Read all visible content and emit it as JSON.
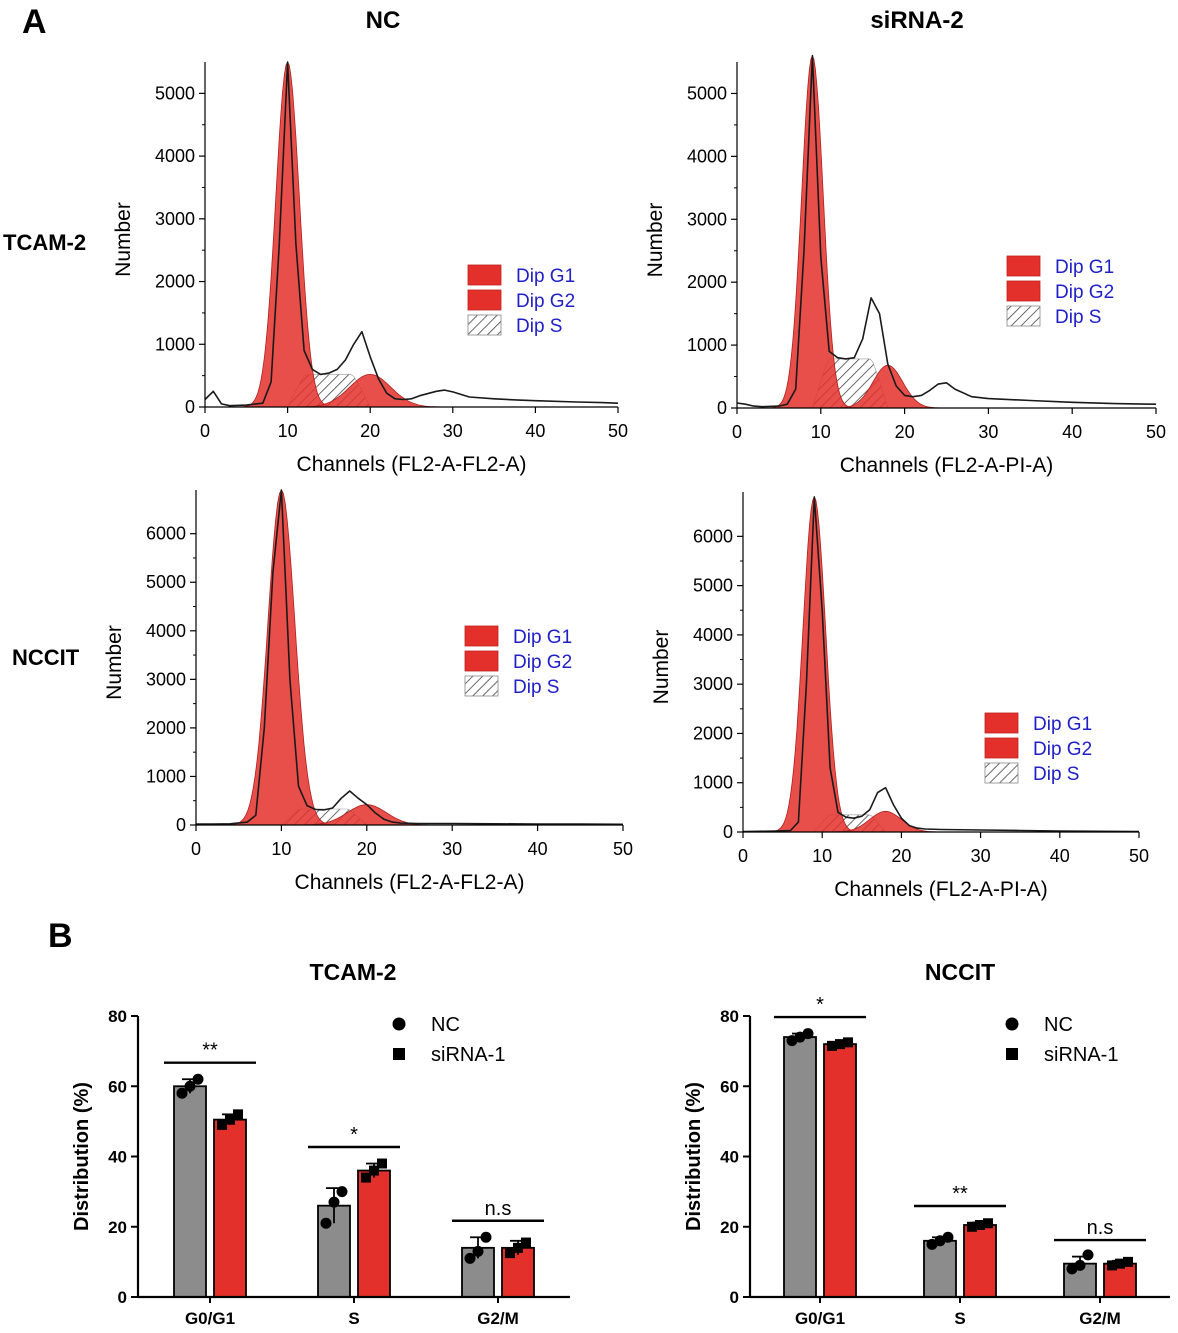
{
  "panels": {
    "a_label": "A",
    "b_label": "B",
    "col_titles": [
      "NC",
      "siRNA-2"
    ],
    "row_labels": [
      "TCAM-2",
      "NCCIT"
    ]
  },
  "colors": {
    "g1_fill": "#e4302a",
    "g2_fill": "#e4302a",
    "nc_bar": "#8c8c8c",
    "sirna_bar": "#e4302a",
    "legend_text": "#2020c8"
  },
  "chart_data": [
    {
      "id": "hist-tcam2-nc",
      "type": "area",
      "row": "TCAM-2",
      "column": "NC",
      "xlabel": "Channels (FL2-A-FL2-A)",
      "ylabel": "Number",
      "xlim": [
        0,
        50
      ],
      "ylim": [
        0,
        5500
      ],
      "xticks": [
        0,
        10,
        20,
        30,
        40,
        50
      ],
      "yticks": [
        0,
        1000,
        2000,
        3000,
        4000,
        5000
      ],
      "legend": [
        "Dip G1",
        "Dip G2",
        "Dip S"
      ],
      "legend_position": "middle-right",
      "g1_peak": {
        "x": 10,
        "height": 5500,
        "halfwidth": 2
      },
      "g2_peak": {
        "x": 20,
        "height": 520,
        "halfwidth": 3.5
      },
      "s_region": {
        "x0": 10,
        "x1": 20,
        "height": 520
      },
      "total_curve": {
        "x": [
          0,
          1,
          2,
          3,
          5,
          7,
          8,
          9,
          10,
          11,
          12,
          13,
          14,
          15,
          16,
          17,
          18,
          19,
          20,
          21,
          22,
          23,
          24,
          25,
          26,
          28,
          29,
          30,
          32,
          35,
          38,
          40,
          45,
          48,
          50
        ],
        "y": [
          120,
          250,
          50,
          20,
          30,
          60,
          400,
          2600,
          5500,
          2600,
          900,
          600,
          520,
          540,
          600,
          750,
          1000,
          1200,
          800,
          450,
          220,
          130,
          120,
          130,
          180,
          250,
          270,
          240,
          160,
          130,
          110,
          100,
          80,
          70,
          60
        ]
      }
    },
    {
      "id": "hist-tcam2-sirna2",
      "type": "area",
      "row": "TCAM-2",
      "column": "siRNA-2",
      "xlabel": "Channels (FL2-A-PI-A)",
      "ylabel": "Number",
      "xlim": [
        0,
        50
      ],
      "ylim": [
        0,
        5500
      ],
      "xticks": [
        0,
        10,
        20,
        30,
        40,
        50
      ],
      "yticks": [
        0,
        1000,
        2000,
        3000,
        4000,
        5000
      ],
      "legend": [
        "Dip G1",
        "Dip G2",
        "Dip S"
      ],
      "legend_position": "middle-right",
      "g1_peak": {
        "x": 9,
        "height": 5600,
        "halfwidth": 1.8
      },
      "g2_peak": {
        "x": 18,
        "height": 680,
        "halfwidth": 2.5
      },
      "s_region": {
        "x0": 9,
        "x1": 18,
        "height": 780
      },
      "total_curve": {
        "x": [
          0,
          1,
          2,
          3,
          5,
          6,
          7,
          8,
          9,
          10,
          11,
          12,
          13,
          14,
          15,
          16,
          17,
          18,
          19,
          20,
          21,
          22,
          23,
          24,
          25,
          26,
          28,
          30,
          35,
          40,
          45,
          50
        ],
        "y": [
          80,
          60,
          30,
          20,
          30,
          60,
          300,
          2500,
          5600,
          2400,
          900,
          800,
          780,
          800,
          1100,
          1750,
          1500,
          700,
          350,
          200,
          180,
          200,
          280,
          380,
          400,
          300,
          180,
          150,
          120,
          90,
          70,
          60
        ]
      }
    },
    {
      "id": "hist-nccit-nc",
      "type": "area",
      "row": "NCCIT",
      "column": "NC",
      "xlabel": "Channels (FL2-A-FL2-A)",
      "ylabel": "Number",
      "xlim": [
        0,
        50
      ],
      "ylim": [
        0,
        6900
      ],
      "xticks": [
        0,
        10,
        20,
        30,
        40,
        50
      ],
      "yticks": [
        0,
        1000,
        2000,
        3000,
        4000,
        5000,
        6000
      ],
      "legend": [
        "Dip G1",
        "Dip G2",
        "Dip S"
      ],
      "legend_position": "middle-right",
      "g1_peak": {
        "x": 10,
        "height": 6900,
        "halfwidth": 2.2
      },
      "g2_peak": {
        "x": 20,
        "height": 420,
        "halfwidth": 3.2
      },
      "s_region": {
        "x0": 10,
        "x1": 20,
        "height": 330
      },
      "total_curve": {
        "x": [
          0,
          2,
          4,
          6,
          7,
          8,
          9,
          10,
          11,
          12,
          13,
          14,
          15,
          16,
          17,
          18,
          19,
          20,
          21,
          22,
          23,
          24,
          26,
          30,
          35,
          40,
          45,
          50
        ],
        "y": [
          20,
          20,
          25,
          60,
          200,
          2000,
          5200,
          6900,
          3000,
          800,
          400,
          320,
          310,
          350,
          550,
          700,
          550,
          420,
          250,
          120,
          60,
          40,
          30,
          30,
          25,
          20,
          20,
          15
        ]
      }
    },
    {
      "id": "hist-nccit-sirna2",
      "type": "area",
      "row": "NCCIT",
      "column": "siRNA-2",
      "xlabel": "Channels (FL2-A-PI-A)",
      "ylabel": "Number",
      "xlim": [
        0,
        50
      ],
      "ylim": [
        0,
        6900
      ],
      "xticks": [
        0,
        10,
        20,
        30,
        40,
        50
      ],
      "yticks": [
        0,
        1000,
        2000,
        3000,
        4000,
        5000,
        6000
      ],
      "legend": [
        "Dip G1",
        "Dip G2",
        "Dip S"
      ],
      "legend_position": "bottom-right",
      "g1_peak": {
        "x": 9,
        "height": 6800,
        "halfwidth": 2
      },
      "g2_peak": {
        "x": 18,
        "height": 420,
        "halfwidth": 2.8
      },
      "s_region": {
        "x0": 9,
        "x1": 18,
        "height": 350
      },
      "total_curve": {
        "x": [
          0,
          2,
          4,
          6,
          7,
          8,
          9,
          10,
          11,
          12,
          13,
          14,
          15,
          16,
          17,
          18,
          19,
          20,
          21,
          22,
          23,
          25,
          30,
          35,
          40,
          45,
          50
        ],
        "y": [
          10,
          15,
          20,
          30,
          200,
          3000,
          6800,
          4500,
          1300,
          400,
          300,
          280,
          320,
          450,
          800,
          900,
          550,
          280,
          130,
          80,
          60,
          50,
          40,
          30,
          20,
          15,
          10
        ]
      }
    },
    {
      "id": "bar-tcam2",
      "type": "bar",
      "title": "TCAM-2",
      "ylabel": "Distribution (%)",
      "ylim": [
        0,
        80
      ],
      "yticks": [
        0,
        20,
        40,
        60,
        80
      ],
      "categories": [
        "G0/G1",
        "S",
        "G2/M"
      ],
      "legend_position": "top-right",
      "series": [
        {
          "name": "NC",
          "values": [
            60,
            26,
            14
          ],
          "errors": [
            2,
            5,
            3
          ],
          "points": [
            [
              58,
              60,
              62
            ],
            [
              21,
              27,
              30
            ],
            [
              11,
              13,
              17
            ]
          ]
        },
        {
          "name": "siRNA-1",
          "values": [
            50.5,
            36,
            14
          ],
          "errors": [
            1.5,
            2,
            2
          ],
          "points": [
            [
              49,
              50.5,
              52
            ],
            [
              34,
              36,
              38
            ],
            [
              12.5,
              14,
              15.5
            ]
          ]
        }
      ],
      "significance": [
        "**",
        "*",
        "n.s"
      ]
    },
    {
      "id": "bar-nccit",
      "type": "bar",
      "title": "NCCIT",
      "ylabel": "Distribution (%)",
      "ylim": [
        0,
        80
      ],
      "yticks": [
        0,
        20,
        40,
        60,
        80
      ],
      "categories": [
        "G0/G1",
        "S",
        "G2/M"
      ],
      "legend_position": "top-right",
      "series": [
        {
          "name": "NC",
          "values": [
            74,
            16,
            9.5
          ],
          "errors": [
            1,
            1,
            2
          ],
          "points": [
            [
              73,
              74,
              75
            ],
            [
              15,
              16,
              17
            ],
            [
              8,
              9,
              12
            ]
          ]
        },
        {
          "name": "siRNA-1",
          "values": [
            72,
            20.5,
            9.5
          ],
          "errors": [
            0.5,
            0.7,
            0.8
          ],
          "points": [
            [
              71.5,
              72,
              72.5
            ],
            [
              20,
              20.5,
              21
            ],
            [
              9,
              9.5,
              10
            ]
          ]
        }
      ],
      "significance": [
        "*",
        "**",
        "n.s"
      ]
    }
  ]
}
